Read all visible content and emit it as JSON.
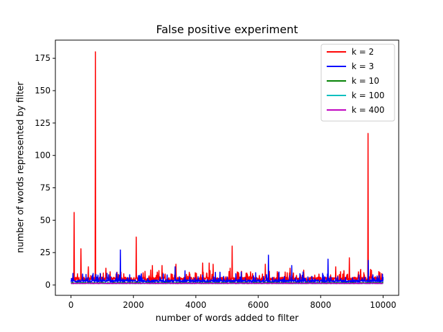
{
  "chart_data": {
    "type": "line",
    "title": "False positive experiment",
    "xlabel": "number of words added to filter",
    "ylabel": "number of words represented by filter",
    "xlim": [
      -500,
      10500
    ],
    "ylim": [
      -8,
      189
    ],
    "xticks": [
      0,
      2000,
      4000,
      6000,
      8000,
      10000
    ],
    "yticks": [
      0,
      25,
      50,
      75,
      100,
      125,
      150,
      175
    ],
    "legend_position": "top-right",
    "grid": false,
    "series": [
      {
        "name": "k = 2",
        "color": "#ff0000",
        "baseline": 3,
        "noise": 3,
        "spikes": [
          [
            100,
            56
          ],
          [
            320,
            28
          ],
          [
            550,
            14
          ],
          [
            780,
            180
          ],
          [
            1120,
            13
          ],
          [
            2090,
            37
          ],
          [
            2610,
            15
          ],
          [
            2920,
            15
          ],
          [
            3360,
            16
          ],
          [
            4220,
            17
          ],
          [
            4430,
            17
          ],
          [
            4550,
            16
          ],
          [
            5100,
            13
          ],
          [
            5160,
            30
          ],
          [
            6230,
            16
          ],
          [
            6860,
            10
          ],
          [
            7020,
            13
          ],
          [
            8480,
            14
          ],
          [
            8920,
            21
          ],
          [
            9280,
            12
          ],
          [
            9520,
            117
          ],
          [
            9600,
            12
          ]
        ]
      },
      {
        "name": "k = 3",
        "color": "#0000ff",
        "baseline": 2,
        "noise": 2,
        "spikes": [
          [
            60,
            9
          ],
          [
            1580,
            27
          ],
          [
            3340,
            14
          ],
          [
            3650,
            11
          ],
          [
            5450,
            10
          ],
          [
            6330,
            23
          ],
          [
            6660,
            10
          ],
          [
            7070,
            15
          ],
          [
            7440,
            10
          ],
          [
            8240,
            20
          ],
          [
            9530,
            19
          ]
        ]
      },
      {
        "name": "k = 10",
        "color": "#008000",
        "baseline": 1,
        "noise": 1,
        "spikes": []
      },
      {
        "name": "k = 100",
        "color": "#00bfbf",
        "baseline": 1,
        "noise": 0.5,
        "spikes": []
      },
      {
        "name": "k = 400",
        "color": "#bf00bf",
        "baseline": 1,
        "noise": 0.5,
        "spikes": []
      }
    ]
  }
}
